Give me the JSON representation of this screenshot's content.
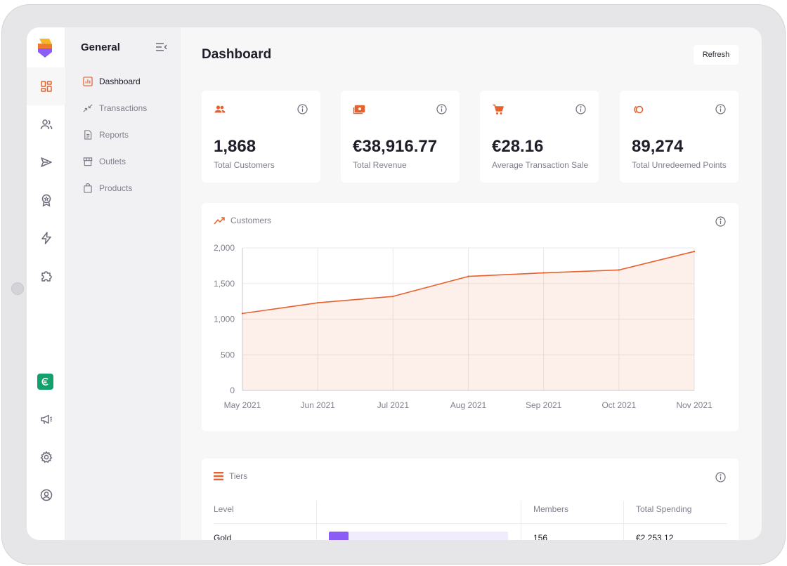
{
  "sidebar": {
    "title": "General",
    "items": [
      {
        "label": "Dashboard",
        "icon": "bar-chart-icon",
        "active": true
      },
      {
        "label": "Transactions",
        "icon": "arrows-in-icon"
      },
      {
        "label": "Reports",
        "icon": "document-icon"
      },
      {
        "label": "Outlets",
        "icon": "store-icon"
      },
      {
        "label": "Products",
        "icon": "bag-icon"
      }
    ]
  },
  "rail": {
    "icons": [
      "dashboard-icon",
      "users-icon",
      "send-icon",
      "award-icon",
      "bolt-icon",
      "puzzle-icon",
      "brand-e-icon",
      "megaphone-icon",
      "gear-icon",
      "account-icon"
    ]
  },
  "header": {
    "title": "Dashboard",
    "refresh_label": "Refresh"
  },
  "stats": [
    {
      "value": "1,868",
      "label": "Total Customers",
      "icon": "users-icon"
    },
    {
      "value": "€38,916.77",
      "label": "Total Revenue",
      "icon": "money-icon"
    },
    {
      "value": "€28.16",
      "label": "Average Transaction Sale",
      "icon": "cart-icon"
    },
    {
      "value": "89,274",
      "label": "Total Unredeemed Points",
      "icon": "points-icon"
    }
  ],
  "customers_panel": {
    "title": "Customers"
  },
  "chart_data": {
    "type": "area",
    "title": "Customers",
    "x": [
      "May 2021",
      "Jun 2021",
      "Jul 2021",
      "Aug 2021",
      "Sep 2021",
      "Oct 2021",
      "Nov 2021"
    ],
    "values": [
      1080,
      1230,
      1320,
      1600,
      1650,
      1690,
      1950
    ],
    "ylim": [
      0,
      2000
    ],
    "yticks": [
      "0",
      "500",
      "1,000",
      "1,500",
      "2,000"
    ],
    "grid": true,
    "color": "#e8602c"
  },
  "tiers_panel": {
    "title": "Tiers",
    "columns": [
      "Level",
      "",
      "Members",
      "Total Spending"
    ],
    "rows": [
      {
        "level": "Gold",
        "members": "156",
        "spending": "€2,253.12",
        "bar_fraction": 0.11,
        "bar_color": "#8b5cf6"
      }
    ]
  },
  "colors": {
    "accent": "#e8602c",
    "purple": "#8b5cf6",
    "green": "#12a06b"
  }
}
